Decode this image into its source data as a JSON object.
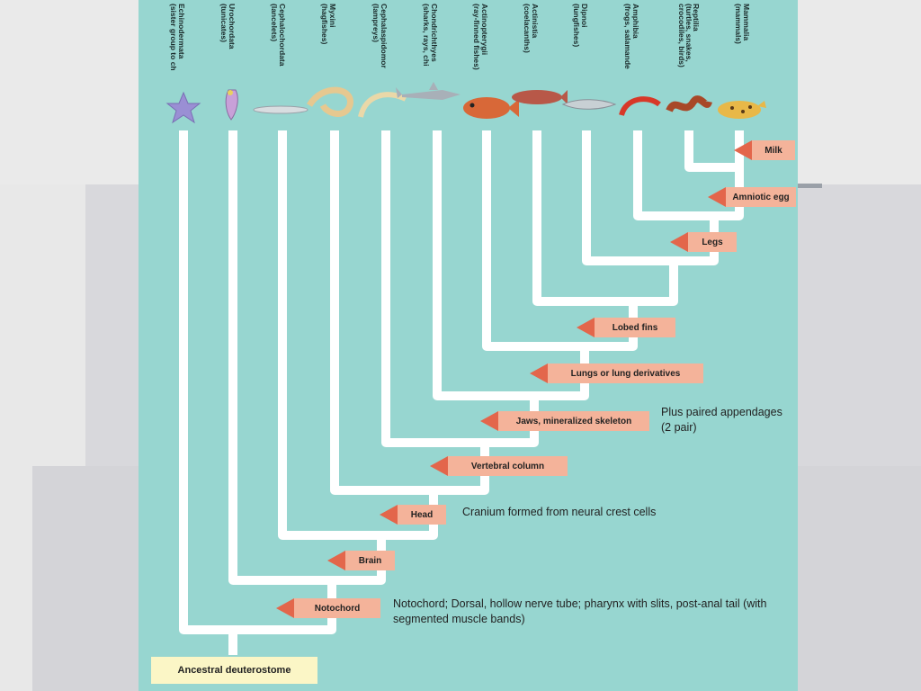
{
  "taxa": [
    {
      "name": "Echinodermata",
      "sub": "(sister group to ch"
    },
    {
      "name": "Urochordata",
      "sub": "(tunicates)"
    },
    {
      "name": "Cephalochordata",
      "sub": "(lancelets)"
    },
    {
      "name": "Myxini",
      "sub": "(hagfishes)"
    },
    {
      "name": "Cephalaspidomor",
      "sub": "(lampreys)"
    },
    {
      "name": "Chondrichthyes",
      "sub": "(sharks, rays, chi"
    },
    {
      "name": "Actinopterygii",
      "sub": "(ray-finned fishes)"
    },
    {
      "name": "Actinistia",
      "sub": "(coelacanths)"
    },
    {
      "name": "Dipnoi",
      "sub": "(lungfishes)"
    },
    {
      "name": "Amphibia",
      "sub": "(frogs, salamande"
    },
    {
      "name": "Reptilia",
      "sub": "(turtles, snakes, crocodiles, birds)"
    },
    {
      "name": "Mammalia",
      "sub": "(mammals)"
    }
  ],
  "traits": {
    "milk": "Milk",
    "amniotic_egg": "Amniotic egg",
    "legs": "Legs",
    "lobed_fins": "Lobed fins",
    "lungs": "Lungs or lung derivatives",
    "jaws": "Jaws, mineralized skeleton",
    "vertebral_column": "Vertebral column",
    "head": "Head",
    "brain": "Brain",
    "notochord": "Notochord"
  },
  "root": "Ancestral deuterostome",
  "notes": {
    "paired_appendages": "Plus paired appendages (2 pair)",
    "cranium": "Cranium formed from neural crest cells",
    "notochord": "Notochord; Dorsal, hollow nerve tube; pharynx with slits, post-anal tail (with segmented muscle bands)"
  },
  "icons": [
    "sea-star-icon",
    "tunicate-icon",
    "lancelet-icon",
    "hagfish-icon",
    "lamprey-icon",
    "shark-icon",
    "ray-finned-fish-icon",
    "coelacanth-icon",
    "lungfish-icon",
    "salamander-icon",
    "snake-icon",
    "leopard-icon"
  ],
  "colors": {
    "panel": "#97d6d0",
    "branch": "#ffffff",
    "trait_box": "#f4b39a",
    "trait_arrow": "#e3664b",
    "root_box": "#fbf6c6"
  }
}
